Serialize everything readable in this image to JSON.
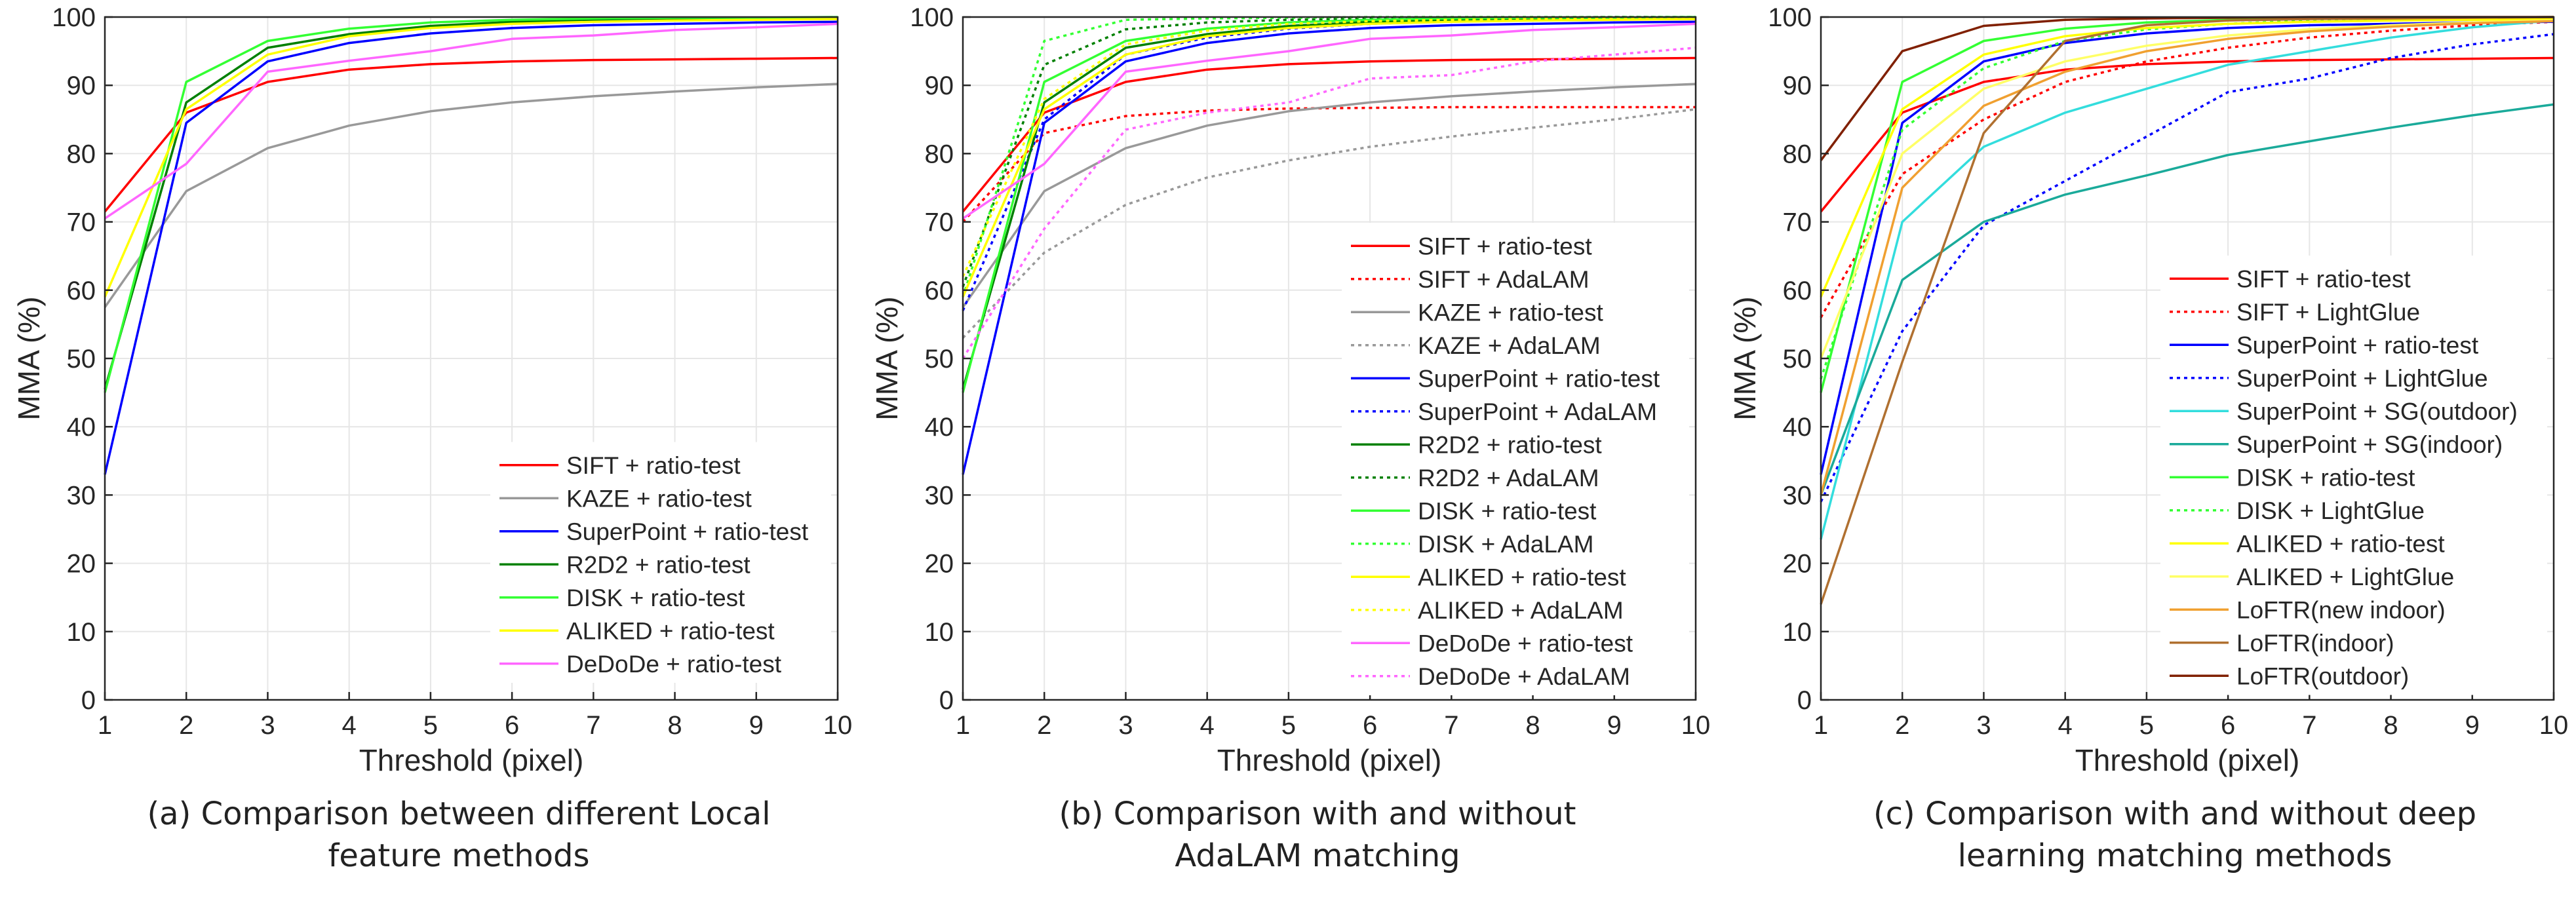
{
  "chart_data": [
    {
      "type": "line",
      "panel": "a",
      "title": "",
      "xlabel": "Threshold (pixel)",
      "ylabel": "MMA (%)",
      "xlim": [
        1,
        10
      ],
      "ylim": [
        0,
        100
      ],
      "xticks": [
        1,
        2,
        3,
        4,
        5,
        6,
        7,
        8,
        9,
        10
      ],
      "yticks": [
        0,
        10,
        20,
        30,
        40,
        50,
        60,
        70,
        80,
        90,
        100
      ],
      "grid": true,
      "legend_position": "bottom-right",
      "x": [
        1,
        2,
        3,
        4,
        5,
        6,
        7,
        8,
        9,
        10
      ],
      "series": [
        {
          "name": "SIFT + ratio-test",
          "color": "#ff0000",
          "dash": "solid",
          "values": [
            71.5,
            86,
            90.5,
            92.3,
            93.1,
            93.5,
            93.7,
            93.8,
            93.9,
            94
          ]
        },
        {
          "name": "KAZE + ratio-test",
          "color": "#999999",
          "dash": "solid",
          "values": [
            57.5,
            74.5,
            80.8,
            84.1,
            86.2,
            87.5,
            88.4,
            89.1,
            89.7,
            90.2
          ]
        },
        {
          "name": "SuperPoint + ratio-test",
          "color": "#0000ff",
          "dash": "solid",
          "values": [
            33,
            84.5,
            93.5,
            96.2,
            97.6,
            98.4,
            98.8,
            99,
            99.2,
            99.3
          ]
        },
        {
          "name": "R2D2 + ratio-test",
          "color": "#008000",
          "dash": "solid",
          "values": [
            45.5,
            87.5,
            95.5,
            97.5,
            98.7,
            99.3,
            99.6,
            99.7,
            99.8,
            99.9
          ]
        },
        {
          "name": "DISK + ratio-test",
          "color": "#33ff33",
          "dash": "solid",
          "values": [
            45,
            90.5,
            96.5,
            98.3,
            99.2,
            99.6,
            99.8,
            99.9,
            99.9,
            100
          ]
        },
        {
          "name": "ALIKED + ratio-test",
          "color": "#ffff00",
          "dash": "solid",
          "values": [
            59,
            86.5,
            94.5,
            97.2,
            98.4,
            99,
            99.3,
            99.5,
            99.6,
            99.7
          ]
        },
        {
          "name": "DeDoDe + ratio-test",
          "color": "#ff66ff",
          "dash": "solid",
          "values": [
            70.5,
            78.5,
            92,
            93.6,
            95,
            96.8,
            97.3,
            98.1,
            98.5,
            99
          ]
        }
      ]
    },
    {
      "type": "line",
      "panel": "b",
      "title": "",
      "xlabel": "Threshold (pixel)",
      "ylabel": "MMA (%)",
      "xlim": [
        1,
        10
      ],
      "ylim": [
        0,
        100
      ],
      "xticks": [
        1,
        2,
        3,
        4,
        5,
        6,
        7,
        8,
        9,
        10
      ],
      "yticks": [
        0,
        10,
        20,
        30,
        40,
        50,
        60,
        70,
        80,
        90,
        100
      ],
      "grid": true,
      "legend_position": "right",
      "x": [
        1,
        2,
        3,
        4,
        5,
        6,
        7,
        8,
        9,
        10
      ],
      "series": [
        {
          "name": "SIFT + ratio-test",
          "color": "#ff0000",
          "dash": "solid",
          "values": [
            71.5,
            86,
            90.5,
            92.3,
            93.1,
            93.5,
            93.7,
            93.8,
            93.9,
            94
          ]
        },
        {
          "name": "SIFT + AdaLAM",
          "color": "#ff0000",
          "dash": "dotted",
          "values": [
            70,
            83,
            85.5,
            86.3,
            86.6,
            86.7,
            86.8,
            86.8,
            86.8,
            86.8
          ]
        },
        {
          "name": "KAZE + ratio-test",
          "color": "#999999",
          "dash": "solid",
          "values": [
            57.5,
            74.5,
            80.8,
            84.1,
            86.2,
            87.5,
            88.4,
            89.1,
            89.7,
            90.2
          ]
        },
        {
          "name": "KAZE + AdaLAM",
          "color": "#999999",
          "dash": "dotted",
          "values": [
            53,
            65.5,
            72.5,
            76.5,
            79,
            81,
            82.5,
            83.8,
            85,
            86.5
          ]
        },
        {
          "name": "SuperPoint + ratio-test",
          "color": "#0000ff",
          "dash": "solid",
          "values": [
            33,
            84.5,
            93.5,
            96.2,
            97.6,
            98.4,
            98.8,
            99,
            99.2,
            99.3
          ]
        },
        {
          "name": "SuperPoint + AdaLAM",
          "color": "#0000ff",
          "dash": "dotted",
          "values": [
            57,
            85,
            94.5,
            97,
            98.3,
            99,
            99.4,
            99.6,
            99.7,
            99.8
          ]
        },
        {
          "name": "R2D2 + ratio-test",
          "color": "#008000",
          "dash": "solid",
          "values": [
            45.5,
            87.5,
            95.5,
            97.5,
            98.7,
            99.3,
            99.6,
            99.7,
            99.8,
            99.9
          ]
        },
        {
          "name": "R2D2 + AdaLAM",
          "color": "#008000",
          "dash": "dotted",
          "values": [
            60.5,
            93,
            98.2,
            99.2,
            99.6,
            99.8,
            99.9,
            99.9,
            100,
            100
          ]
        },
        {
          "name": "DISK + ratio-test",
          "color": "#33ff33",
          "dash": "solid",
          "values": [
            45,
            90.5,
            96.5,
            98.3,
            99.2,
            99.6,
            99.8,
            99.9,
            99.9,
            100
          ]
        },
        {
          "name": "DISK + AdaLAM",
          "color": "#33ff33",
          "dash": "dotted",
          "values": [
            59,
            96.5,
            99.6,
            99.8,
            99.9,
            100,
            100,
            100,
            100,
            100
          ]
        },
        {
          "name": "ALIKED + ratio-test",
          "color": "#ffff00",
          "dash": "solid",
          "values": [
            59,
            86.5,
            94.5,
            97.2,
            98.4,
            99,
            99.3,
            99.5,
            99.6,
            99.7
          ]
        },
        {
          "name": "ALIKED + AdaLAM",
          "color": "#ffff00",
          "dash": "dotted",
          "values": [
            62,
            88,
            96,
            98,
            99,
            99.4,
            99.6,
            99.7,
            99.8,
            99.9
          ]
        },
        {
          "name": "DeDoDe + ratio-test",
          "color": "#ff66ff",
          "dash": "solid",
          "values": [
            70.5,
            78.5,
            92,
            93.6,
            95,
            96.8,
            97.3,
            98.1,
            98.5,
            99
          ]
        },
        {
          "name": "DeDoDe + AdaLAM",
          "color": "#ff66ff",
          "dash": "dotted",
          "values": [
            50,
            69,
            83.5,
            86,
            87.5,
            91,
            91.5,
            93.5,
            94.5,
            95.5
          ]
        }
      ]
    },
    {
      "type": "line",
      "panel": "c",
      "title": "",
      "xlabel": "Threshold (pixel)",
      "ylabel": "MMA (%)",
      "xlim": [
        1,
        10
      ],
      "ylim": [
        0,
        100
      ],
      "xticks": [
        1,
        2,
        3,
        4,
        5,
        6,
        7,
        8,
        9,
        10
      ],
      "yticks": [
        0,
        10,
        20,
        30,
        40,
        50,
        60,
        70,
        80,
        90,
        100
      ],
      "grid": true,
      "legend_position": "right",
      "x": [
        1,
        2,
        3,
        4,
        5,
        6,
        7,
        8,
        9,
        10
      ],
      "series": [
        {
          "name": "SIFT + ratio-test",
          "color": "#ff0000",
          "dash": "solid",
          "values": [
            71.5,
            86,
            90.5,
            92.3,
            93.1,
            93.5,
            93.7,
            93.8,
            93.9,
            94
          ]
        },
        {
          "name": "SIFT + LightGlue",
          "color": "#ff0000",
          "dash": "dotted",
          "values": [
            56,
            77,
            85,
            90.5,
            93.5,
            95.5,
            97,
            98,
            98.8,
            99.3
          ]
        },
        {
          "name": "SuperPoint + ratio-test",
          "color": "#0000ff",
          "dash": "solid",
          "values": [
            33,
            84.5,
            93.5,
            96.2,
            97.6,
            98.4,
            98.8,
            99,
            99.2,
            99.3
          ]
        },
        {
          "name": "SuperPoint + LightGlue",
          "color": "#0000ff",
          "dash": "dotted",
          "values": [
            29,
            54,
            69.5,
            76,
            82.5,
            89,
            91,
            94,
            96,
            97.5
          ]
        },
        {
          "name": "SuperPoint + SG(outdoor)",
          "color": "#33dddd",
          "dash": "solid",
          "values": [
            23.5,
            70,
            81,
            86,
            89.5,
            93,
            95,
            97,
            98.5,
            99.5
          ]
        },
        {
          "name": "SuperPoint + SG(indoor)",
          "color": "#1aaa9a",
          "dash": "solid",
          "values": [
            30,
            61.5,
            70,
            74,
            76.8,
            79.8,
            81.8,
            83.8,
            85.6,
            87.2
          ]
        },
        {
          "name": "DISK + ratio-test",
          "color": "#33ff33",
          "dash": "solid",
          "values": [
            45,
            90.5,
            96.5,
            98.3,
            99.2,
            99.6,
            99.8,
            99.9,
            99.9,
            100
          ]
        },
        {
          "name": "DISK + LightGlue",
          "color": "#33ff33",
          "dash": "dotted",
          "values": [
            47,
            83.5,
            92.5,
            96.5,
            98.2,
            99,
            99.5,
            99.7,
            99.8,
            99.9
          ]
        },
        {
          "name": "ALIKED + ratio-test",
          "color": "#ffff00",
          "dash": "solid",
          "values": [
            59,
            86.5,
            94.5,
            97.2,
            98.4,
            99,
            99.3,
            99.5,
            99.6,
            99.7
          ]
        },
        {
          "name": "ALIKED + LightGlue",
          "color": "#ffff66",
          "dash": "solid",
          "values": [
            50,
            80,
            89.5,
            93.5,
            95.8,
            97.3,
            98.2,
            98.8,
            99.2,
            99.5
          ]
        },
        {
          "name": "LoFTR(new indoor)",
          "color": "#f0a030",
          "dash": "solid",
          "values": [
            30,
            75,
            87,
            92,
            95,
            96.8,
            97.9,
            98.6,
            99.1,
            99.4
          ]
        },
        {
          "name": "LoFTR(indoor)",
          "color": "#b07030",
          "dash": "solid",
          "values": [
            14,
            49.5,
            83,
            96.5,
            98.8,
            99.5,
            99.7,
            99.8,
            99.9,
            100
          ]
        },
        {
          "name": "LoFTR(outdoor)",
          "color": "#802000",
          "dash": "solid",
          "values": [
            79,
            95,
            98.7,
            99.6,
            99.8,
            99.9,
            100,
            100,
            100,
            100
          ]
        }
      ]
    }
  ],
  "captions": [
    {
      "line1": "(a) Comparison between different Local",
      "line2": "feature methods"
    },
    {
      "line1": "(b) Comparison with and without",
      "line2": "AdaLAM matching"
    },
    {
      "line1": "(c) Comparison with and without deep",
      "line2": "learning matching methods"
    }
  ]
}
